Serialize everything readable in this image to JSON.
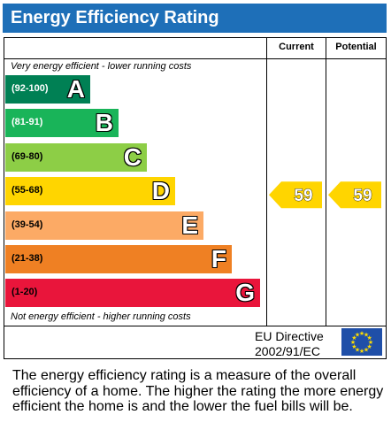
{
  "title": "Energy Efficiency Rating",
  "columns": {
    "current": "Current",
    "potential": "Potential"
  },
  "top_note": "Very energy efficient - lower running costs",
  "bottom_note": "Not energy efficient - higher running costs",
  "chart_data": {
    "type": "bar",
    "title": "Energy Efficiency Rating",
    "bands": [
      {
        "letter": "A",
        "range": "(92-100)",
        "color": "#008054",
        "range_color": "#ffffff"
      },
      {
        "letter": "B",
        "range": "(81-91)",
        "color": "#19b459",
        "range_color": "#ffffff"
      },
      {
        "letter": "C",
        "range": "(69-80)",
        "color": "#8dce46",
        "range_color": "#000000"
      },
      {
        "letter": "D",
        "range": "(55-68)",
        "color": "#ffd500",
        "range_color": "#000000"
      },
      {
        "letter": "E",
        "range": "(39-54)",
        "color": "#fcaa65",
        "range_color": "#000000"
      },
      {
        "letter": "F",
        "range": "(21-38)",
        "color": "#ef8023",
        "range_color": "#000000"
      },
      {
        "letter": "G",
        "range": "(1-20)",
        "color": "#e9153b",
        "range_color": "#000000"
      }
    ],
    "current": {
      "value": 59,
      "band": "D"
    },
    "potential": {
      "value": 59,
      "band": "D"
    },
    "arrow_color": "#ffd500"
  },
  "eu": {
    "line1": "EU Directive",
    "line2": "2002/91/EC",
    "flag_color": "#1f4fa8",
    "star_color": "#ffdd00"
  },
  "description": "The energy efficiency rating is a measure of the overall efficiency of a home. The higher the rating the more energy efficient the home is and the lower the fuel bills will be."
}
